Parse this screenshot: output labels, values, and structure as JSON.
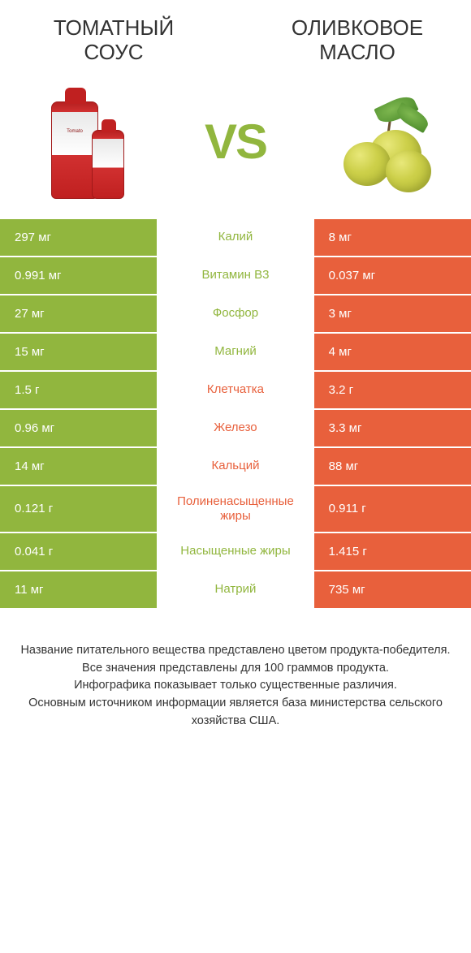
{
  "colors": {
    "left": "#91b63e",
    "right": "#e8603c",
    "mid_bg": "#ffffff",
    "text_dark": "#333333"
  },
  "left_product": {
    "title": "ТОМАТНЫЙ СОУС"
  },
  "right_product": {
    "title": "ОЛИВКОВОЕ МАСЛО"
  },
  "vs": "VS",
  "rows": [
    {
      "left": "297 мг",
      "label": "Калий",
      "right": "8 мг",
      "winner": "left"
    },
    {
      "left": "0.991 мг",
      "label": "Витамин B3",
      "right": "0.037 мг",
      "winner": "left"
    },
    {
      "left": "27 мг",
      "label": "Фосфор",
      "right": "3 мг",
      "winner": "left"
    },
    {
      "left": "15 мг",
      "label": "Магний",
      "right": "4 мг",
      "winner": "left"
    },
    {
      "left": "1.5 г",
      "label": "Клетчатка",
      "right": "3.2 г",
      "winner": "right"
    },
    {
      "left": "0.96 мг",
      "label": "Железо",
      "right": "3.3 мг",
      "winner": "right"
    },
    {
      "left": "14 мг",
      "label": "Кальций",
      "right": "88 мг",
      "winner": "right"
    },
    {
      "left": "0.121 г",
      "label": "Полиненасыщенные жиры",
      "right": "0.911 г",
      "winner": "right"
    },
    {
      "left": "0.041 г",
      "label": "Насыщенные жиры",
      "right": "1.415 г",
      "winner": "left"
    },
    {
      "left": "11 мг",
      "label": "Натрий",
      "right": "735 мг",
      "winner": "left"
    }
  ],
  "footer": {
    "line1": "Название питательного вещества представлено цветом продукта-победителя.",
    "line2": "Все значения представлены для 100 граммов продукта.",
    "line3": "Инфографика показывает только существенные различия.",
    "line4": "Основным источником информации является база министерства сельского хозяйства США."
  }
}
